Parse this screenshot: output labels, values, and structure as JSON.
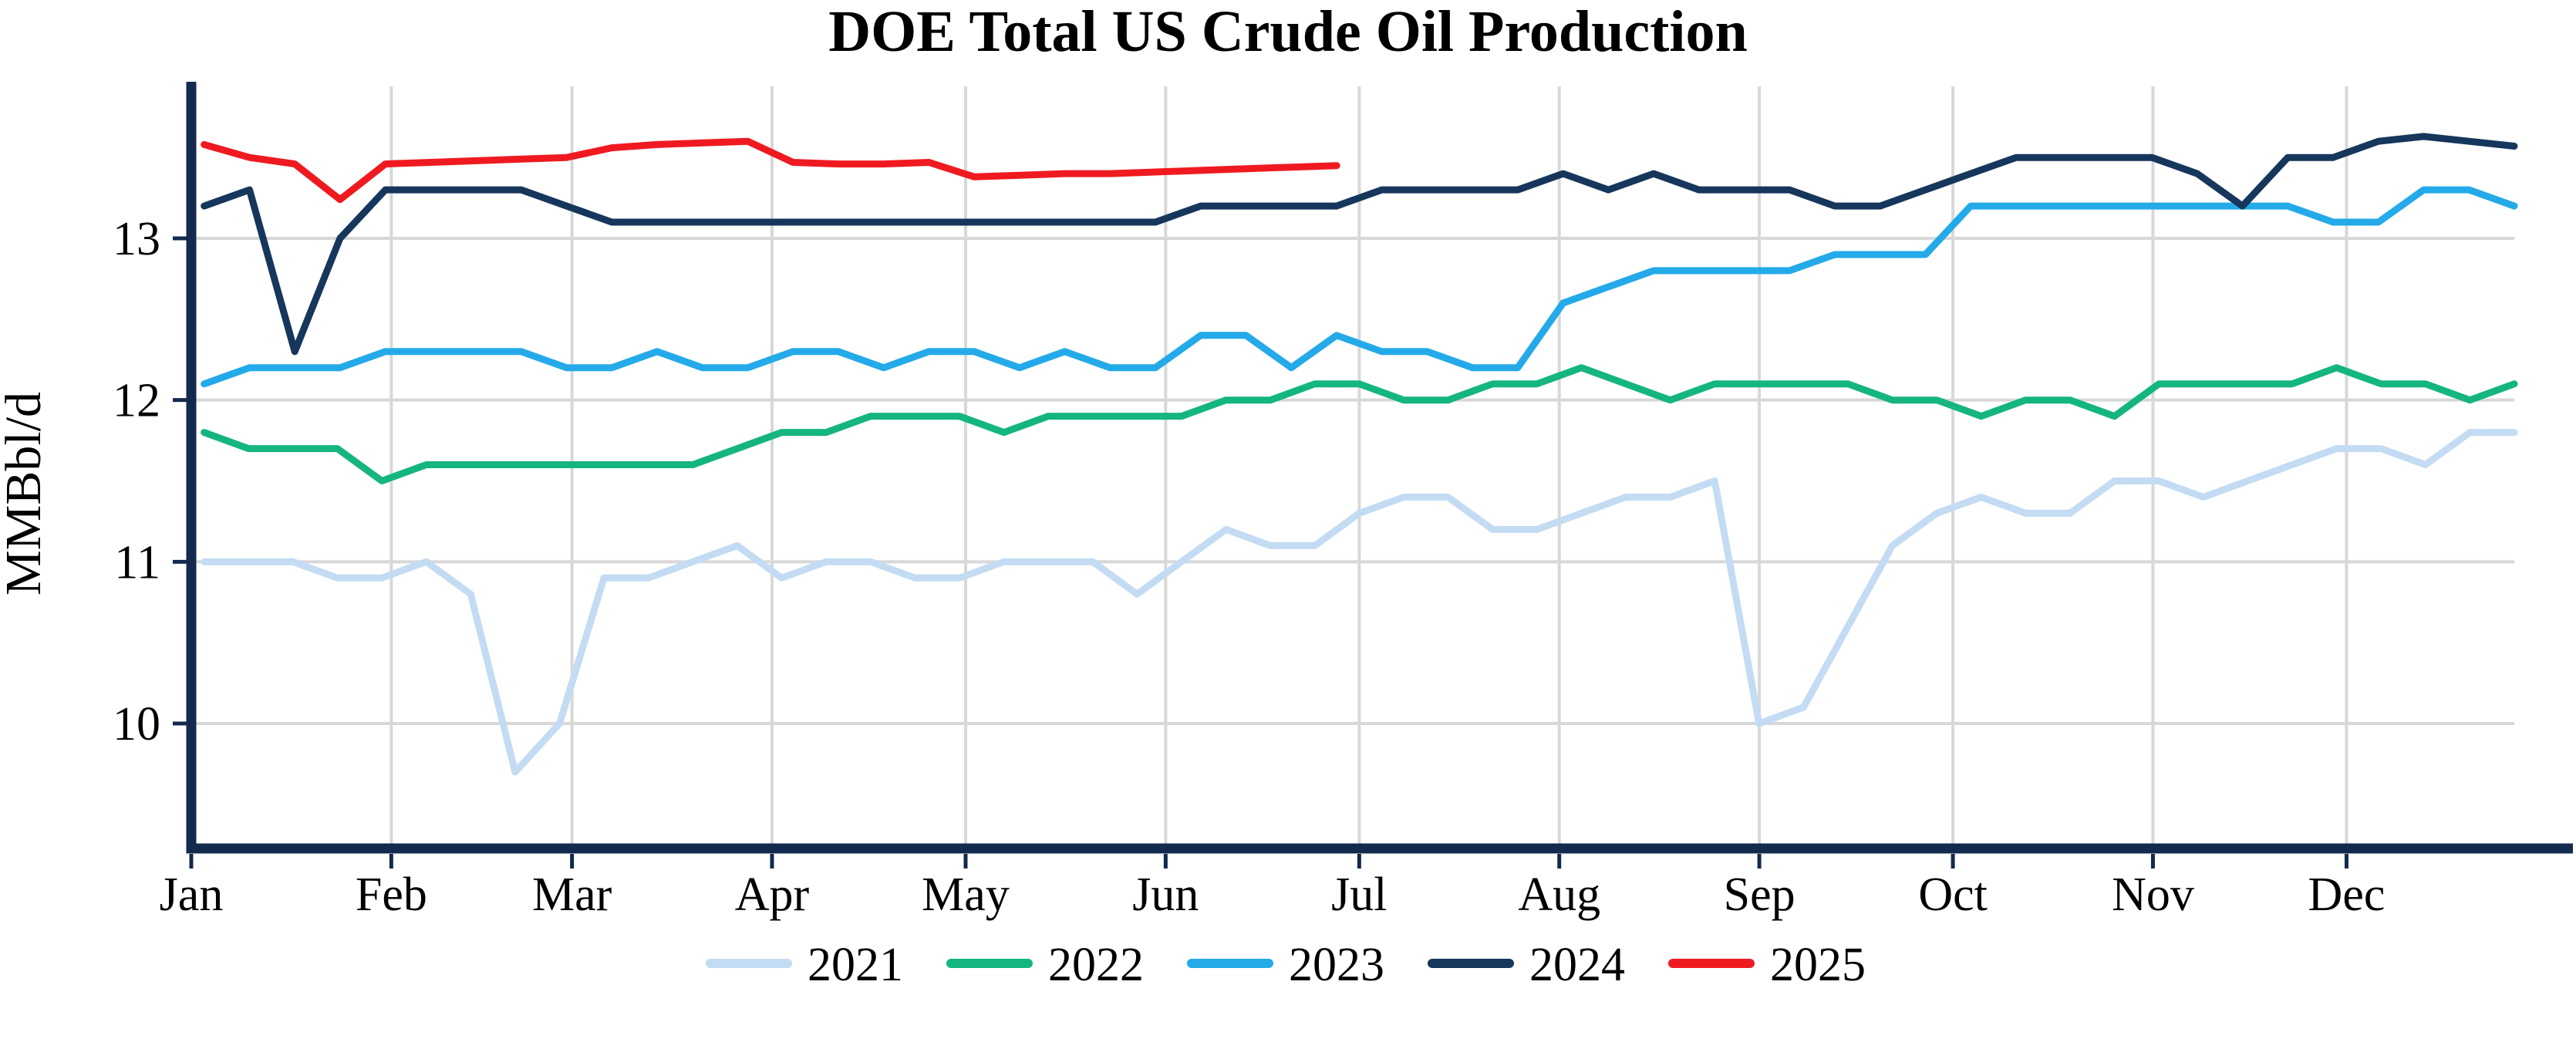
{
  "chart_data": {
    "type": "line",
    "title": "DOE Total US Crude Oil Production",
    "ylabel": "MMBbl/d",
    "xlabel": "",
    "grid": true,
    "legend_position": "bottom",
    "x_axis": {
      "unit": "month of year (weekly data points)",
      "tick_labels": [
        "Jan",
        "Feb",
        "Mar",
        "Apr",
        "May",
        "Jun",
        "Jul",
        "Aug",
        "Sep",
        "Oct",
        "Nov",
        "Dec"
      ],
      "month_start_days": [
        0,
        31,
        59,
        90,
        120,
        151,
        181,
        212,
        243,
        273,
        304,
        334
      ],
      "days_in_year": 360
    },
    "y_axis": {
      "ticks": [
        13,
        12,
        11,
        10
      ],
      "tick_labels": [
        "13",
        "12",
        "11",
        "10"
      ],
      "range_top": 13.93,
      "range_bottom": 9.25
    },
    "colors": {
      "grid": "#d8d8d8",
      "axis": "#13294e",
      "text": "#000000",
      "background": "#ffffff"
    },
    "series": [
      {
        "name": "2021",
        "color": "#c3dcf3",
        "end_day": 360,
        "values": [
          11.0,
          11.0,
          11.0,
          10.9,
          10.9,
          11.0,
          10.8,
          9.7,
          10.0,
          10.9,
          10.9,
          11.0,
          11.1,
          10.9,
          11.0,
          11.0,
          10.9,
          10.9,
          11.0,
          11.0,
          11.0,
          10.8,
          11.0,
          11.2,
          11.1,
          11.1,
          11.3,
          11.4,
          11.4,
          11.2,
          11.2,
          11.3,
          11.4,
          11.4,
          11.5,
          10.0,
          10.1,
          10.6,
          11.1,
          11.3,
          11.4,
          11.3,
          11.3,
          11.5,
          11.5,
          11.4,
          11.5,
          11.6,
          11.7,
          11.7,
          11.6,
          11.8,
          11.8
        ]
      },
      {
        "name": "2022",
        "color": "#15b57f",
        "end_day": 360,
        "values": [
          11.8,
          11.7,
          11.7,
          11.7,
          11.5,
          11.6,
          11.6,
          11.6,
          11.6,
          11.6,
          11.6,
          11.6,
          11.7,
          11.8,
          11.8,
          11.9,
          11.9,
          11.9,
          11.8,
          11.9,
          11.9,
          11.9,
          11.9,
          12.0,
          12.0,
          12.1,
          12.1,
          12.0,
          12.0,
          12.1,
          12.1,
          12.2,
          12.1,
          12.0,
          12.1,
          12.1,
          12.1,
          12.1,
          12.0,
          12.0,
          11.9,
          12.0,
          12.0,
          11.9,
          12.1,
          12.1,
          12.1,
          12.1,
          12.2,
          12.1,
          12.1,
          12.0,
          12.1
        ]
      },
      {
        "name": "2023",
        "color": "#24aae9",
        "end_day": 360,
        "values": [
          12.1,
          12.2,
          12.2,
          12.2,
          12.3,
          12.3,
          12.3,
          12.3,
          12.2,
          12.2,
          12.3,
          12.2,
          12.2,
          12.3,
          12.3,
          12.2,
          12.3,
          12.3,
          12.2,
          12.3,
          12.2,
          12.2,
          12.4,
          12.4,
          12.2,
          12.4,
          12.3,
          12.3,
          12.2,
          12.2,
          12.6,
          12.7,
          12.8,
          12.8,
          12.8,
          12.8,
          12.9,
          12.9,
          12.9,
          13.2,
          13.2,
          13.2,
          13.2,
          13.2,
          13.2,
          13.2,
          13.2,
          13.1,
          13.1,
          13.3,
          13.3,
          13.2
        ]
      },
      {
        "name": "2024",
        "color": "#16365c",
        "end_day": 360,
        "values": [
          13.2,
          13.3,
          12.3,
          13.0,
          13.3,
          13.3,
          13.3,
          13.3,
          13.2,
          13.1,
          13.1,
          13.1,
          13.1,
          13.1,
          13.1,
          13.1,
          13.1,
          13.1,
          13.1,
          13.1,
          13.1,
          13.1,
          13.2,
          13.2,
          13.2,
          13.2,
          13.3,
          13.3,
          13.3,
          13.3,
          13.4,
          13.3,
          13.4,
          13.3,
          13.3,
          13.3,
          13.2,
          13.2,
          13.3,
          13.4,
          13.5,
          13.5,
          13.5,
          13.5,
          13.4,
          13.2,
          13.5,
          13.5,
          13.6,
          13.63,
          13.6,
          13.57
        ]
      },
      {
        "name": "2025",
        "color": "#ef1a20",
        "end_day": 177.5,
        "values": [
          13.58,
          13.5,
          13.46,
          13.24,
          13.46,
          13.47,
          13.48,
          13.49,
          13.5,
          13.56,
          13.58,
          13.59,
          13.6,
          13.47,
          13.46,
          13.46,
          13.47,
          13.38,
          13.39,
          13.4,
          13.4,
          13.41,
          13.42,
          13.43,
          13.44,
          13.45
        ]
      }
    ]
  }
}
